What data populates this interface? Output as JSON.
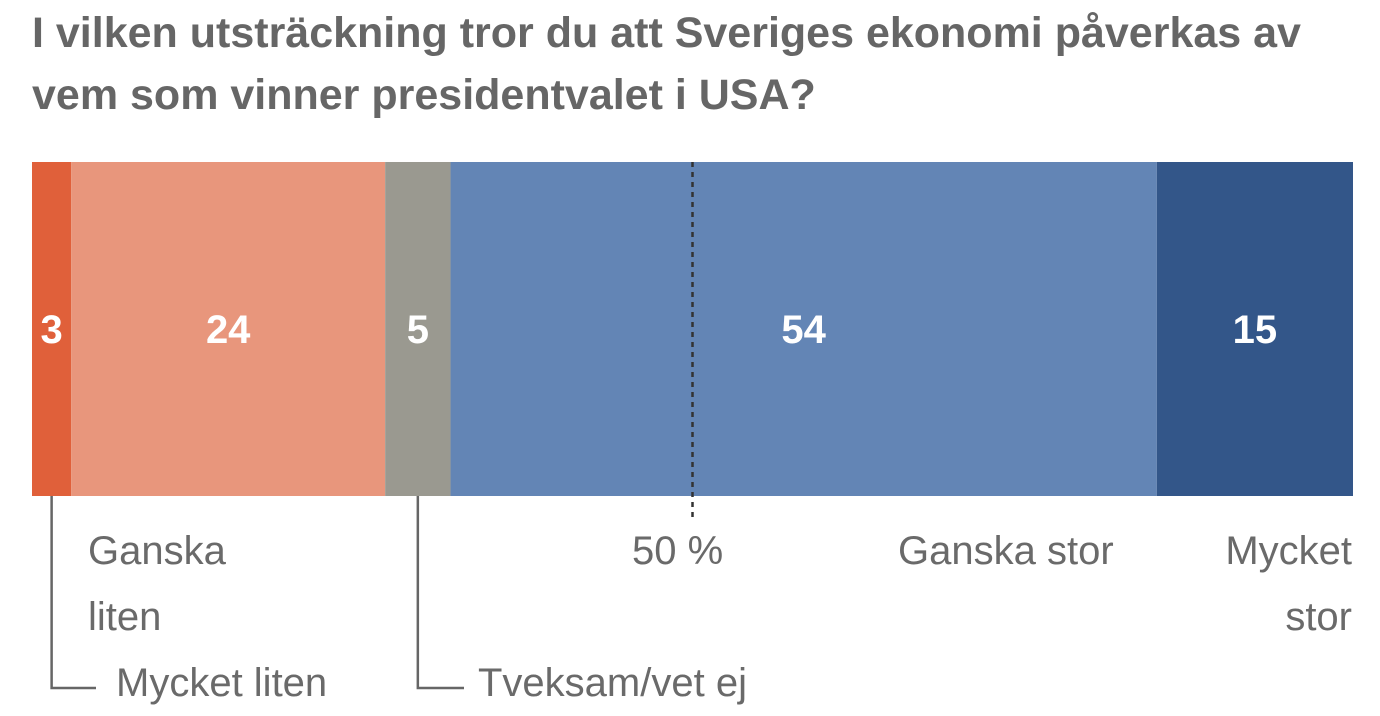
{
  "chart_data": {
    "type": "bar",
    "orientation": "horizontal-stacked",
    "title": "I vilken utsträckning tror du att Sveriges ekonomi påverkas av vem som vinner presidentvalet i USA?",
    "categories": [
      "Mycket liten",
      "Ganska liten",
      "Tveksam/vet ej",
      "Ganska stor",
      "Mycket stor"
    ],
    "values": [
      3,
      24,
      5,
      54,
      15
    ],
    "colors": [
      "#e0603a",
      "#e8967c",
      "#9a9990",
      "#6385b5",
      "#335689"
    ],
    "reference_line": {
      "value": 50,
      "label": "50 %"
    },
    "unit": "%"
  },
  "labels": {
    "ganska_liten": [
      "Ganska",
      "liten"
    ],
    "mycket_liten": "Mycket liten",
    "tveksam": "Tveksam/vet ej",
    "ganska_stor": "Ganska stor",
    "mycket_stor": [
      "Mycket",
      "stor"
    ],
    "fifty": "50 %"
  }
}
